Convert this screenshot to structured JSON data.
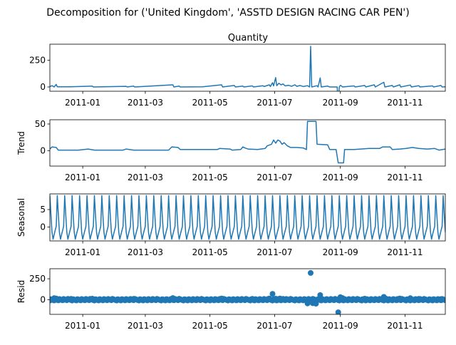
{
  "figure": {
    "suptitle": "Decomposition for ('United Kingdom', 'ASSTD DESIGN RACING CAR PEN')"
  },
  "chart_data": [
    {
      "type": "line",
      "title": "Quantity",
      "ylabel": "",
      "xlim": [
        "2010-12-01",
        "2011-12-09"
      ],
      "ylim": [
        -40,
        400
      ],
      "yticks": [
        0,
        250
      ],
      "xticks": [
        "2011-01",
        "2011-03",
        "2011-05",
        "2011-07",
        "2011-09",
        "2011-11"
      ],
      "grid": false,
      "series": [
        {
          "values": [
            [
              "2010-12-01",
              4
            ],
            [
              "2010-12-03",
              12
            ],
            [
              "2010-12-05",
              0
            ],
            [
              "2010-12-07",
              24
            ],
            [
              "2010-12-08",
              2
            ],
            [
              "2010-12-20",
              2
            ],
            [
              "2011-01-10",
              8
            ],
            [
              "2011-01-11",
              0
            ],
            [
              "2011-02-11",
              6
            ],
            [
              "2011-02-12",
              0
            ],
            [
              "2011-02-18",
              8
            ],
            [
              "2011-02-19",
              0
            ],
            [
              "2011-03-27",
              20
            ],
            [
              "2011-03-28",
              0
            ],
            [
              "2011-04-02",
              8
            ],
            [
              "2011-04-03",
              0
            ],
            [
              "2011-04-24",
              2
            ],
            [
              "2011-05-12",
              20
            ],
            [
              "2011-05-13",
              0
            ],
            [
              "2011-05-24",
              14
            ],
            [
              "2011-05-25",
              0
            ],
            [
              "2011-06-01",
              8
            ],
            [
              "2011-06-02",
              0
            ],
            [
              "2011-06-10",
              10
            ],
            [
              "2011-06-11",
              0
            ],
            [
              "2011-06-20",
              12
            ],
            [
              "2011-06-21",
              4
            ],
            [
              "2011-06-26",
              20
            ],
            [
              "2011-06-27",
              4
            ],
            [
              "2011-06-29",
              40
            ],
            [
              "2011-06-30",
              10
            ],
            [
              "2011-07-02",
              88
            ],
            [
              "2011-07-03",
              12
            ],
            [
              "2011-07-05",
              35
            ],
            [
              "2011-07-07",
              20
            ],
            [
              "2011-07-09",
              28
            ],
            [
              "2011-07-11",
              10
            ],
            [
              "2011-07-14",
              16
            ],
            [
              "2011-07-17",
              6
            ],
            [
              "2011-07-20",
              20
            ],
            [
              "2011-07-22",
              6
            ],
            [
              "2011-07-25",
              14
            ],
            [
              "2011-07-28",
              4
            ],
            [
              "2011-08-01",
              12
            ],
            [
              "2011-08-03",
              0
            ],
            [
              "2011-08-04",
              380
            ],
            [
              "2011-08-05",
              0
            ],
            [
              "2011-08-10",
              12
            ],
            [
              "2011-08-11",
              0
            ],
            [
              "2011-08-13",
              85
            ],
            [
              "2011-08-14",
              0
            ],
            [
              "2011-08-20",
              8
            ],
            [
              "2011-08-22",
              0
            ],
            [
              "2011-08-29",
              0
            ],
            [
              "2011-08-30",
              -150
            ],
            [
              "2011-08-31",
              0
            ],
            [
              "2011-09-01",
              15
            ],
            [
              "2011-09-02",
              10
            ],
            [
              "2011-09-03",
              0
            ],
            [
              "2011-09-14",
              10
            ],
            [
              "2011-09-15",
              0
            ],
            [
              "2011-09-24",
              14
            ],
            [
              "2011-09-25",
              0
            ],
            [
              "2011-10-03",
              20
            ],
            [
              "2011-10-04",
              0
            ],
            [
              "2011-10-12",
              44
            ],
            [
              "2011-10-13",
              0
            ],
            [
              "2011-10-20",
              14
            ],
            [
              "2011-10-21",
              0
            ],
            [
              "2011-10-27",
              20
            ],
            [
              "2011-10-28",
              0
            ],
            [
              "2011-11-06",
              18
            ],
            [
              "2011-11-07",
              0
            ],
            [
              "2011-11-14",
              12
            ],
            [
              "2011-11-15",
              0
            ],
            [
              "2011-11-27",
              10
            ],
            [
              "2011-11-28",
              0
            ],
            [
              "2011-12-05",
              14
            ],
            [
              "2011-12-06",
              0
            ],
            [
              "2011-12-09",
              2
            ]
          ]
        }
      ]
    },
    {
      "type": "line",
      "ylabel": "Trend",
      "xlim": [
        "2010-12-01",
        "2011-12-09"
      ],
      "ylim": [
        -29,
        58
      ],
      "yticks": [
        0,
        50
      ],
      "xticks": [
        "2011-01",
        "2011-03",
        "2011-05",
        "2011-07",
        "2011-09",
        "2011-11"
      ],
      "grid": false,
      "series": [
        {
          "values": [
            [
              "2010-12-01",
              3
            ],
            [
              "2010-12-03",
              7
            ],
            [
              "2010-12-07",
              6
            ],
            [
              "2010-12-09",
              1
            ],
            [
              "2010-12-28",
              1
            ],
            [
              "2011-01-06",
              3
            ],
            [
              "2011-01-12",
              1
            ],
            [
              "2011-02-08",
              1
            ],
            [
              "2011-02-11",
              3
            ],
            [
              "2011-02-18",
              1
            ],
            [
              "2011-03-23",
              1
            ],
            [
              "2011-03-26",
              7
            ],
            [
              "2011-04-01",
              6
            ],
            [
              "2011-04-03",
              2
            ],
            [
              "2011-05-08",
              2
            ],
            [
              "2011-05-10",
              4
            ],
            [
              "2011-05-20",
              3
            ],
            [
              "2011-05-22",
              1
            ],
            [
              "2011-05-30",
              2
            ],
            [
              "2011-06-01",
              7
            ],
            [
              "2011-06-03",
              5
            ],
            [
              "2011-06-06",
              3
            ],
            [
              "2011-06-15",
              2
            ],
            [
              "2011-06-22",
              4
            ],
            [
              "2011-06-24",
              9
            ],
            [
              "2011-06-28",
              12
            ],
            [
              "2011-06-30",
              20
            ],
            [
              "2011-07-02",
              14
            ],
            [
              "2011-07-04",
              20
            ],
            [
              "2011-07-06",
              18
            ],
            [
              "2011-07-08",
              12
            ],
            [
              "2011-07-10",
              15
            ],
            [
              "2011-07-13",
              9
            ],
            [
              "2011-07-16",
              6
            ],
            [
              "2011-07-22",
              6
            ],
            [
              "2011-07-28",
              5
            ],
            [
              "2011-07-31",
              2
            ],
            [
              "2011-08-01",
              55
            ],
            [
              "2011-08-09",
              55
            ],
            [
              "2011-08-10",
              12
            ],
            [
              "2011-08-20",
              11
            ],
            [
              "2011-08-22",
              2
            ],
            [
              "2011-08-28",
              2
            ],
            [
              "2011-08-30",
              -23
            ],
            [
              "2011-09-04",
              -23
            ],
            [
              "2011-09-05",
              2
            ],
            [
              "2011-09-14",
              2
            ],
            [
              "2011-09-20",
              3
            ],
            [
              "2011-09-28",
              4
            ],
            [
              "2011-10-08",
              4
            ],
            [
              "2011-10-11",
              7
            ],
            [
              "2011-10-18",
              7
            ],
            [
              "2011-10-20",
              2
            ],
            [
              "2011-10-27",
              3
            ],
            [
              "2011-11-02",
              4
            ],
            [
              "2011-11-08",
              6
            ],
            [
              "2011-11-14",
              4
            ],
            [
              "2011-11-22",
              3
            ],
            [
              "2011-11-29",
              4
            ],
            [
              "2011-12-03",
              1
            ],
            [
              "2011-12-09",
              3
            ]
          ]
        }
      ]
    },
    {
      "type": "line",
      "ylabel": "Seasonal",
      "xlim": [
        "2010-12-01",
        "2011-12-09"
      ],
      "ylim": [
        -4,
        9.5
      ],
      "yticks": [
        0,
        5
      ],
      "xticks": [
        "2011-01",
        "2011-03",
        "2011-05",
        "2011-07",
        "2011-09",
        "2011-11"
      ],
      "grid": false,
      "pattern": {
        "period_days": 7,
        "cycle_values": [
          9,
          3.5,
          -1.5,
          -3.5,
          -2.2,
          -1.0,
          0.2
        ],
        "start": "2010-12-01",
        "end": "2011-12-09"
      }
    },
    {
      "type": "scatter",
      "ylabel": "Resid",
      "xlim": [
        "2010-12-01",
        "2011-12-09"
      ],
      "ylim": [
        -175,
        370
      ],
      "yticks": [
        0,
        250
      ],
      "xticks": [
        "2011-01",
        "2011-03",
        "2011-05",
        "2011-07",
        "2011-09",
        "2011-11"
      ],
      "grid": false,
      "baseline": 0,
      "dense_band": {
        "start": "2010-12-01",
        "end": "2011-12-09",
        "range": [
          -10,
          10
        ]
      },
      "points": [
        [
          "2010-12-05",
          18
        ],
        [
          "2010-12-07",
          14
        ],
        [
          "2010-12-21",
          10
        ],
        [
          "2011-01-10",
          12
        ],
        [
          "2011-02-18",
          10
        ],
        [
          "2011-03-27",
          20
        ],
        [
          "2011-04-02",
          10
        ],
        [
          "2011-05-12",
          14
        ],
        [
          "2011-06-10",
          10
        ],
        [
          "2011-06-26",
          15
        ],
        [
          "2011-06-29",
          70
        ],
        [
          "2011-07-02",
          12
        ],
        [
          "2011-07-06",
          15
        ],
        [
          "2011-07-09",
          10
        ],
        [
          "2011-08-01",
          -45
        ],
        [
          "2011-08-04",
          320
        ],
        [
          "2011-08-06",
          -42
        ],
        [
          "2011-08-09",
          -48
        ],
        [
          "2011-08-13",
          55
        ],
        [
          "2011-08-30",
          -150
        ],
        [
          "2011-09-01",
          30
        ],
        [
          "2011-09-03",
          20
        ],
        [
          "2011-09-24",
          12
        ],
        [
          "2011-10-12",
          34
        ],
        [
          "2011-10-14",
          12
        ],
        [
          "2011-10-27",
          14
        ],
        [
          "2011-11-06",
          18
        ],
        [
          "2011-11-14",
          10
        ],
        [
          "2011-12-05",
          8
        ]
      ]
    }
  ]
}
